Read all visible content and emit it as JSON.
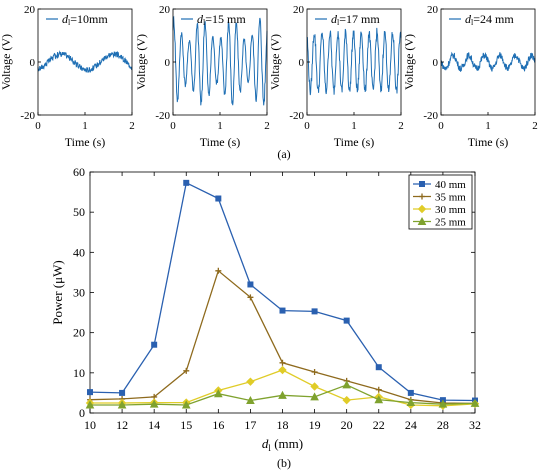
{
  "colors": {
    "wave": "#1f6fb4",
    "s40": "#2a60b0",
    "s35": "#8e6a1d",
    "s30": "#e0cc28",
    "s25": "#7fa22e"
  },
  "captions": {
    "a": "(a)",
    "b": "(b)"
  },
  "chart_data": [
    {
      "type": "line",
      "legend_label": "d",
      "legend_sub": "l",
      "legend_value": "=10mm",
      "xlabel": "Time (s)",
      "ylabel": "Voltage (V)",
      "xlim": [
        0,
        2
      ],
      "ylim": [
        -20,
        20
      ],
      "xticks": [
        "0",
        "1",
        "2"
      ],
      "yticks": [
        "-20",
        "0",
        "20"
      ],
      "amplitude": 3,
      "freq": 2.5,
      "noise": 1.1
    },
    {
      "type": "line",
      "legend_label": "d",
      "legend_sub": "l",
      "legend_value": "=15 mm",
      "xlabel": "Time (s)",
      "ylabel": "Voltage (V)",
      "xlim": [
        0,
        2
      ],
      "ylim": [
        -20,
        20
      ],
      "xticks": [
        "0",
        "1",
        "2"
      ],
      "yticks": [
        "-20",
        "0",
        "20"
      ],
      "amplitude": 16,
      "freq": 6,
      "noise": 2
    },
    {
      "type": "line",
      "legend_label": "d",
      "legend_sub": "l",
      "legend_value": "=17 mm",
      "xlabel": "Time (s)",
      "ylabel": "Voltage (V)",
      "xlim": [
        0,
        2
      ],
      "ylim": [
        -20,
        20
      ],
      "xticks": [
        "0",
        "1",
        "2"
      ],
      "yticks": [
        "-20",
        "0",
        "20"
      ],
      "amplitude": 11,
      "freq": 6,
      "noise": 2
    },
    {
      "type": "line",
      "legend_label": "d",
      "legend_sub": "l",
      "legend_value": "=24 mm",
      "xlabel": "Time (s)",
      "ylabel": "Voltage (V)",
      "xlim": [
        0,
        2
      ],
      "ylim": [
        -20,
        20
      ],
      "xticks": [
        "0",
        "1",
        "2"
      ],
      "yticks": [
        "-20",
        "0",
        "20"
      ],
      "amplitude": 2.5,
      "freq": 3,
      "noise": 1.3
    },
    {
      "type": "line",
      "xlabel": "d",
      "xlabel_sub": "l",
      "xlabel_unit": " (mm)",
      "ylabel": "Power (μW)",
      "ylim": [
        0,
        60
      ],
      "yticks": [
        "0",
        "10",
        "20",
        "30",
        "40",
        "50",
        "60"
      ],
      "categories": [
        "10",
        "12",
        "14",
        "15",
        "16",
        "17",
        "18",
        "19",
        "20",
        "22",
        "24",
        "28",
        "32"
      ],
      "legend_position": "top-right",
      "series": [
        {
          "name": "40 mm",
          "marker": "square",
          "color": "#2a60b0",
          "values": [
            5.2,
            5.0,
            17.0,
            57.3,
            53.4,
            32.0,
            25.5,
            25.3,
            23.0,
            11.4,
            5.0,
            3.2,
            3.1
          ]
        },
        {
          "name": "35 mm",
          "marker": "plus",
          "color": "#8e6a1d",
          "values": [
            3.3,
            3.5,
            4.0,
            10.5,
            35.4,
            28.8,
            12.5,
            10.2,
            8.0,
            5.8,
            3.3,
            2.5,
            2.4
          ]
        },
        {
          "name": "30 mm",
          "marker": "diamond",
          "color": "#e0cc28",
          "values": [
            2.5,
            2.5,
            2.6,
            2.6,
            5.6,
            7.8,
            10.7,
            6.6,
            3.2,
            4.0,
            2.0,
            1.8,
            2.3
          ]
        },
        {
          "name": "25 mm",
          "marker": "triangle",
          "color": "#7fa22e",
          "values": [
            2.0,
            2.0,
            2.2,
            2.0,
            4.8,
            3.1,
            4.4,
            4.0,
            7.0,
            3.3,
            2.6,
            2.2,
            2.4
          ]
        }
      ]
    }
  ]
}
